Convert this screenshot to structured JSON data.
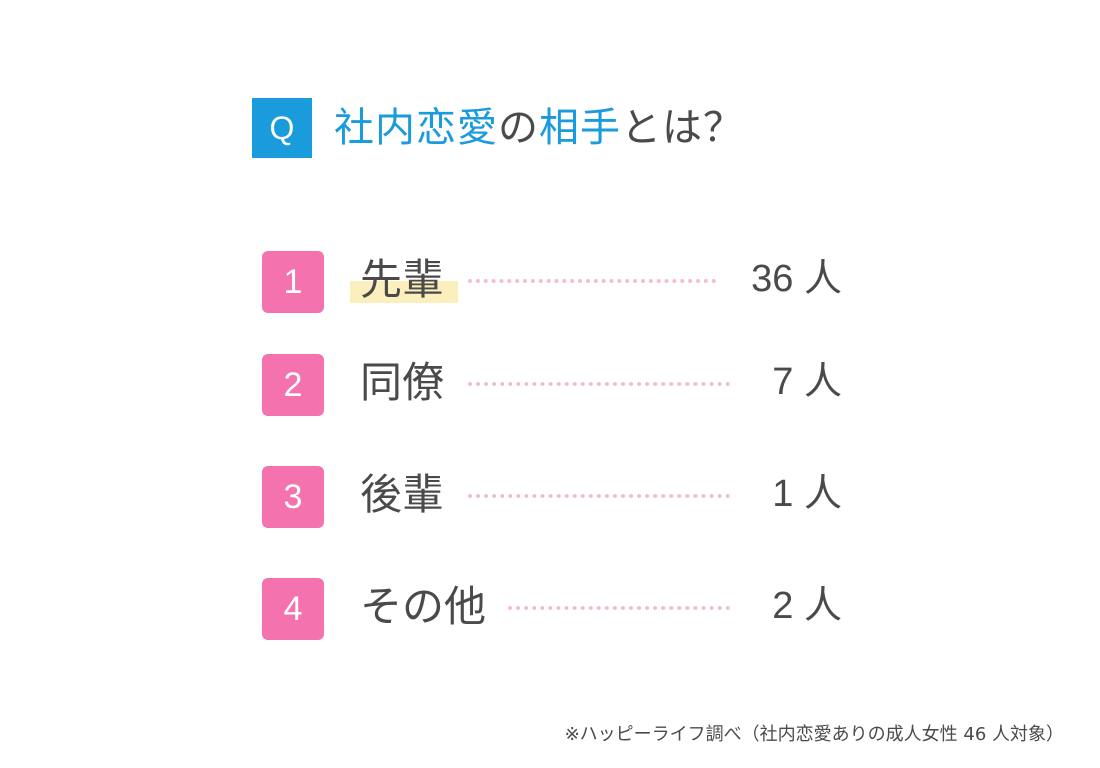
{
  "title": {
    "badge": "Q",
    "parts": [
      "社内恋愛",
      "の",
      "相手",
      "とは？"
    ]
  },
  "colors": {
    "accent_blue": "#1a9bdc",
    "rank_pink": "#f472ae",
    "dot_pink": "#f6bcd6",
    "highlight_yellow": "#fbefbd",
    "text": "#4a4a4a"
  },
  "chart_data": {
    "type": "table",
    "title": "社内恋愛の相手とは？",
    "unit": "人",
    "rows": [
      {
        "rank": "1",
        "label": "先輩",
        "value": 36,
        "value_text": "36 人"
      },
      {
        "rank": "2",
        "label": "同僚",
        "value": 7,
        "value_text": "7 人"
      },
      {
        "rank": "3",
        "label": "後輩",
        "value": 1,
        "value_text": "1 人"
      },
      {
        "rank": "4",
        "label": "その他",
        "value": 2,
        "value_text": "2 人"
      }
    ]
  },
  "footnote": "※ハッピーライフ調べ（社内恋愛ありの成人女性 46 人対象）"
}
